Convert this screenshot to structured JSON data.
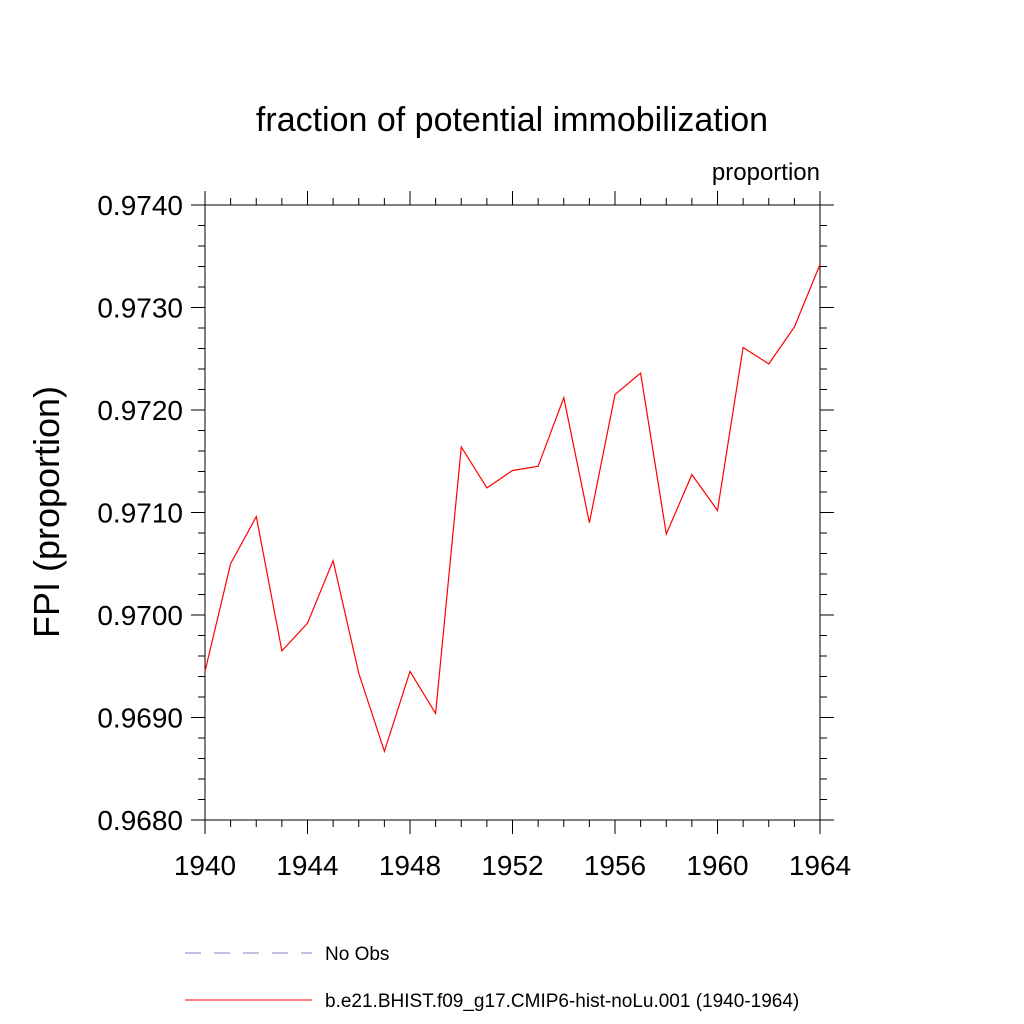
{
  "chart_data": {
    "type": "line",
    "title": "fraction of potential immobilization",
    "units_label": "proportion",
    "xlabel": "",
    "ylabel": "FPI  (proportion)",
    "xlim": [
      1940,
      1964
    ],
    "ylim": [
      0.968,
      0.974
    ],
    "x_ticks": [
      1940,
      1944,
      1948,
      1952,
      1956,
      1960,
      1964
    ],
    "x_tick_labels": [
      "1940",
      "1944",
      "1948",
      "1952",
      "1956",
      "1960",
      "1964"
    ],
    "y_ticks": [
      0.968,
      0.969,
      0.97,
      0.971,
      0.972,
      0.973,
      0.974
    ],
    "y_tick_labels": [
      "0.9680",
      "0.9690",
      "0.9700",
      "0.9710",
      "0.9720",
      "0.9730",
      "0.9740"
    ],
    "grid": false,
    "legend_position": "bottom",
    "series": [
      {
        "name": "b.e21.BHIST.f09_g17.CMIP6-hist-noLu.001 (1940-1964)",
        "color": "#ff0000",
        "style": "solid",
        "x": [
          1940,
          1941,
          1942,
          1943,
          1944,
          1945,
          1946,
          1947,
          1948,
          1949,
          1950,
          1951,
          1952,
          1953,
          1954,
          1955,
          1956,
          1957,
          1958,
          1959,
          1960,
          1961,
          1962,
          1963,
          1964
        ],
        "y": [
          0.96945,
          0.9705,
          0.97096,
          0.96965,
          0.96992,
          0.97053,
          0.96943,
          0.96867,
          0.96945,
          0.96904,
          0.97164,
          0.97124,
          0.97141,
          0.97145,
          0.97212,
          0.9709,
          0.97215,
          0.97236,
          0.97079,
          0.97137,
          0.97102,
          0.97261,
          0.97245,
          0.97281,
          0.97342
        ]
      }
    ],
    "legend": [
      {
        "label": "No Obs",
        "color": "#8a7fc8",
        "style": "dashed"
      },
      {
        "label": "b.e21.BHIST.f09_g17.CMIP6-hist-noLu.001 (1940-1964)",
        "color": "#ff0000",
        "style": "solid"
      }
    ]
  }
}
